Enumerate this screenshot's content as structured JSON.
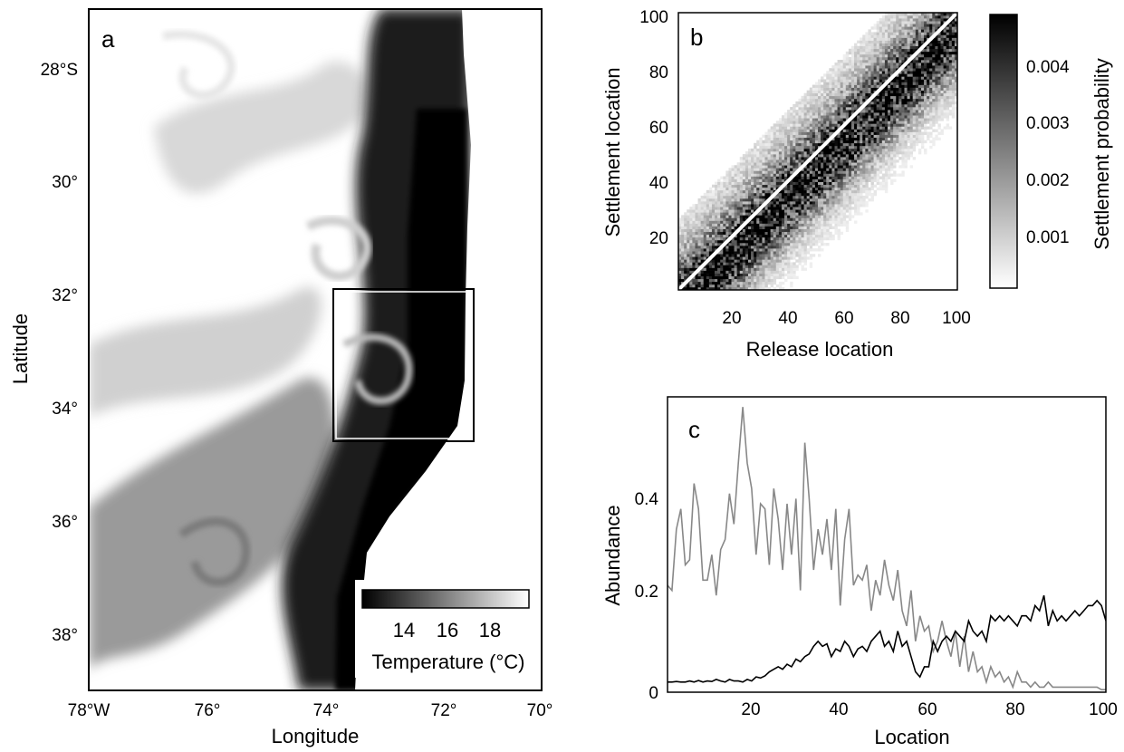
{
  "panels": {
    "a": {
      "panel_label": "a",
      "xlabel": "Longitude",
      "ylabel": "Latitude",
      "x_ticks": [
        "78°W",
        "76°",
        "74°",
        "72°",
        "70°"
      ],
      "y_ticks": [
        "28°S",
        "30°",
        "32°",
        "34°",
        "36°",
        "38°"
      ],
      "colorbar": {
        "label": "Temperature (°C)",
        "ticks": [
          "14",
          "16",
          "18"
        ]
      }
    },
    "b": {
      "panel_label": "b",
      "xlabel": "Release location",
      "ylabel": "Settlement location",
      "x_ticks": [
        "20",
        "40",
        "60",
        "80",
        "100"
      ],
      "y_ticks": [
        "20",
        "40",
        "60",
        "80",
        "100"
      ],
      "colorbar": {
        "label": "Settlement probability",
        "ticks": [
          "0.001",
          "0.002",
          "0.003",
          "0.004"
        ]
      }
    },
    "c": {
      "panel_label": "c",
      "xlabel": "Location",
      "ylabel": "Abundance",
      "x_ticks": [
        "20",
        "40",
        "60",
        "80",
        "100"
      ],
      "y_ticks": [
        "0",
        "0.2",
        "0.4"
      ]
    }
  },
  "chart_data": [
    {
      "type": "heatmap",
      "panel": "a",
      "description_free": true,
      "xlabel": "Longitude",
      "ylabel": "Latitude",
      "xlim": [
        -78,
        -70
      ],
      "ylim": [
        -39,
        -27.5
      ],
      "colorbar_label": "Temperature (°C)",
      "colorbar_range": [
        12.5,
        20
      ],
      "colormap": [
        "#000000",
        "#ffffff"
      ],
      "box_region": {
        "lon": [
          -73.8,
          -71.2
        ],
        "lat": [
          -34.6,
          -31.9
        ]
      }
    },
    {
      "type": "heatmap",
      "panel": "b",
      "xlabel": "Release location",
      "ylabel": "Settlement location",
      "xlim": [
        1,
        100
      ],
      "ylim": [
        1,
        100
      ],
      "grid_size": 100,
      "colorbar_label": "Settlement probability",
      "colorbar_range": [
        0,
        0.0048
      ],
      "colormap": [
        "#ffffff",
        "#000000"
      ],
      "reference_line": {
        "from": [
          1,
          1
        ],
        "to": [
          100,
          100
        ],
        "color": "#ffffff"
      }
    },
    {
      "type": "line",
      "panel": "c",
      "xlabel": "Location",
      "ylabel": "Abundance",
      "xlim": [
        1,
        100
      ],
      "ylim": [
        0,
        0.58
      ],
      "series": [
        {
          "color": "#888888",
          "x": [
            1,
            2,
            3,
            4,
            5,
            6,
            7,
            8,
            9,
            10,
            11,
            12,
            13,
            14,
            15,
            16,
            17,
            18,
            19,
            20,
            21,
            22,
            23,
            24,
            25,
            26,
            27,
            28,
            29,
            30,
            31,
            32,
            33,
            34,
            35,
            36,
            37,
            38,
            39,
            40,
            41,
            42,
            43,
            44,
            45,
            46,
            47,
            48,
            49,
            50,
            51,
            52,
            53,
            54,
            55,
            56,
            57,
            58,
            59,
            60,
            61,
            62,
            63,
            64,
            65,
            66,
            67,
            68,
            69,
            70,
            71,
            72,
            73,
            74,
            75,
            76,
            77,
            78,
            79,
            80,
            81,
            82,
            83,
            84,
            85,
            86,
            87,
            88,
            89,
            90,
            91,
            92,
            93,
            94,
            95,
            96,
            97,
            98,
            99,
            100
          ],
          "values": [
            0.21,
            0.2,
            0.32,
            0.36,
            0.25,
            0.26,
            0.41,
            0.36,
            0.22,
            0.22,
            0.27,
            0.19,
            0.28,
            0.3,
            0.39,
            0.33,
            0.45,
            0.56,
            0.45,
            0.4,
            0.27,
            0.37,
            0.36,
            0.25,
            0.4,
            0.34,
            0.24,
            0.37,
            0.27,
            0.38,
            0.2,
            0.49,
            0.38,
            0.24,
            0.32,
            0.27,
            0.34,
            0.24,
            0.36,
            0.17,
            0.3,
            0.36,
            0.21,
            0.23,
            0.22,
            0.25,
            0.16,
            0.22,
            0.19,
            0.26,
            0.21,
            0.18,
            0.24,
            0.16,
            0.13,
            0.2,
            0.1,
            0.15,
            0.12,
            0.13,
            0.08,
            0.1,
            0.14,
            0.1,
            0.07,
            0.12,
            0.05,
            0.11,
            0.04,
            0.08,
            0.04,
            0.05,
            0.02,
            0.05,
            0.03,
            0.04,
            0.02,
            0.03,
            0.01,
            0.04,
            0.02,
            0.02,
            0.01,
            0.02,
            0.01,
            0.01,
            0.02,
            0.01,
            0.01,
            0.01,
            0.01,
            0.01,
            0.01,
            0.01,
            0.01,
            0.01,
            0.01,
            0.01,
            0.005,
            0.005
          ]
        },
        {
          "color": "#000000",
          "x": [
            1,
            2,
            3,
            4,
            5,
            6,
            7,
            8,
            9,
            10,
            11,
            12,
            13,
            14,
            15,
            16,
            17,
            18,
            19,
            20,
            21,
            22,
            23,
            24,
            25,
            26,
            27,
            28,
            29,
            30,
            31,
            32,
            33,
            34,
            35,
            36,
            37,
            38,
            39,
            40,
            41,
            42,
            43,
            44,
            45,
            46,
            47,
            48,
            49,
            50,
            51,
            52,
            53,
            54,
            55,
            56,
            57,
            58,
            59,
            60,
            61,
            62,
            63,
            64,
            65,
            66,
            67,
            68,
            69,
            70,
            71,
            72,
            73,
            74,
            75,
            76,
            77,
            78,
            79,
            80,
            81,
            82,
            83,
            84,
            85,
            86,
            87,
            88,
            89,
            90,
            91,
            92,
            93,
            94,
            95,
            96,
            97,
            98,
            99,
            100
          ],
          "values": [
            0.02,
            0.02,
            0.021,
            0.02,
            0.02,
            0.022,
            0.02,
            0.023,
            0.02,
            0.022,
            0.021,
            0.025,
            0.022,
            0.02,
            0.025,
            0.022,
            0.022,
            0.02,
            0.025,
            0.022,
            0.03,
            0.028,
            0.032,
            0.04,
            0.045,
            0.05,
            0.045,
            0.055,
            0.05,
            0.065,
            0.06,
            0.07,
            0.075,
            0.09,
            0.1,
            0.09,
            0.095,
            0.07,
            0.085,
            0.08,
            0.1,
            0.09,
            0.07,
            0.085,
            0.09,
            0.08,
            0.1,
            0.11,
            0.12,
            0.09,
            0.1,
            0.08,
            0.12,
            0.09,
            0.1,
            0.07,
            0.04,
            0.03,
            0.05,
            0.05,
            0.1,
            0.08,
            0.1,
            0.11,
            0.1,
            0.12,
            0.11,
            0.1,
            0.14,
            0.12,
            0.11,
            0.12,
            0.1,
            0.15,
            0.14,
            0.15,
            0.14,
            0.15,
            0.14,
            0.13,
            0.15,
            0.15,
            0.14,
            0.17,
            0.16,
            0.19,
            0.13,
            0.16,
            0.14,
            0.15,
            0.14,
            0.15,
            0.16,
            0.15,
            0.16,
            0.17,
            0.17,
            0.18,
            0.17,
            0.14
          ]
        }
      ]
    }
  ]
}
